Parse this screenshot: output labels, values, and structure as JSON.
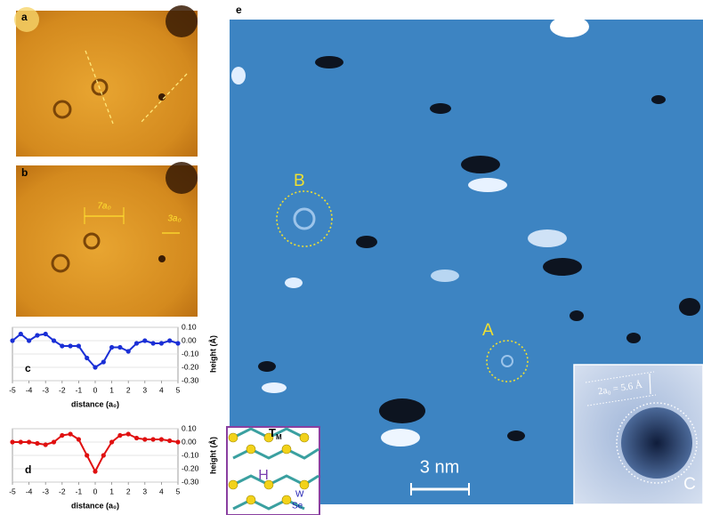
{
  "chart_data": [
    {
      "type": "line",
      "panel": "c",
      "x": [
        -5,
        -4.5,
        -4,
        -3.5,
        -3,
        -2.5,
        -2,
        -1.5,
        -1,
        -0.5,
        0,
        0.5,
        1,
        1.5,
        2,
        2.5,
        3,
        3.5,
        4,
        4.5,
        5
      ],
      "series": [
        {
          "color": "#1a2fd6",
          "values": [
            0.0,
            0.05,
            0.0,
            0.04,
            0.05,
            0.0,
            -0.04,
            -0.04,
            -0.04,
            -0.13,
            -0.2,
            -0.16,
            -0.05,
            -0.05,
            -0.08,
            -0.02,
            0.0,
            -0.02,
            -0.02,
            0.0,
            -0.02
          ]
        }
      ],
      "xlim": [
        -5,
        5
      ],
      "xticks": [
        -5,
        -4,
        -3,
        -2,
        -1,
        0,
        1,
        2,
        3,
        4,
        5
      ],
      "ylim": [
        -0.3,
        0.1
      ],
      "yticks": [
        {
          "value": 0.1,
          "label": "0.10"
        },
        {
          "value": 0,
          "label": "0.00"
        },
        {
          "value": -0.1,
          "label": "-0.10"
        },
        {
          "value": -0.2,
          "label": "-0.20"
        },
        {
          "value": -0.3,
          "label": "-0.30"
        }
      ],
      "xlabel": "distance (a₀)",
      "ylabel": "height (Å)",
      "grid": true
    },
    {
      "type": "line",
      "panel": "d",
      "x": [
        -5,
        -4.5,
        -4,
        -3.5,
        -3,
        -2.5,
        -2,
        -1.5,
        -1,
        -0.5,
        0,
        0.5,
        1,
        1.5,
        2,
        2.5,
        3,
        3.5,
        4,
        4.5,
        5
      ],
      "series": [
        {
          "color": "#e01010",
          "values": [
            0.0,
            0.0,
            0.0,
            -0.01,
            -0.02,
            0.0,
            0.05,
            0.06,
            0.02,
            -0.1,
            -0.22,
            -0.1,
            0.0,
            0.05,
            0.06,
            0.03,
            0.02,
            0.02,
            0.02,
            0.01,
            0.0
          ]
        }
      ],
      "xlim": [
        -5,
        5
      ],
      "xticks": [
        -5,
        -4,
        -3,
        -2,
        -1,
        0,
        1,
        2,
        3,
        4,
        5
      ],
      "ylim": [
        -0.3,
        0.1
      ],
      "yticks": [
        {
          "value": 0.1,
          "label": "0.10"
        },
        {
          "value": 0,
          "label": "0.00"
        },
        {
          "value": -0.1,
          "label": "-0.10"
        },
        {
          "value": -0.2,
          "label": "-0.20"
        },
        {
          "value": -0.3,
          "label": "-0.30"
        }
      ],
      "xlabel": "distance (a₀)",
      "ylabel": "height (Å)",
      "grid": true
    }
  ],
  "figure": {
    "panel_a": "a",
    "panel_b": "b",
    "panel_e": "e",
    "spacing_wide": "7a₀",
    "spacing_narrow": "3a₀",
    "site_b": "B",
    "site_a": "A",
    "site_c": "C",
    "scale_bar": "3 nm",
    "lattice": "2a₀ = 5.6 Å",
    "atom_tm": "T",
    "atom_tm_sub": "M",
    "phase": "H",
    "atom_w": "W",
    "atom_se": "Se"
  }
}
